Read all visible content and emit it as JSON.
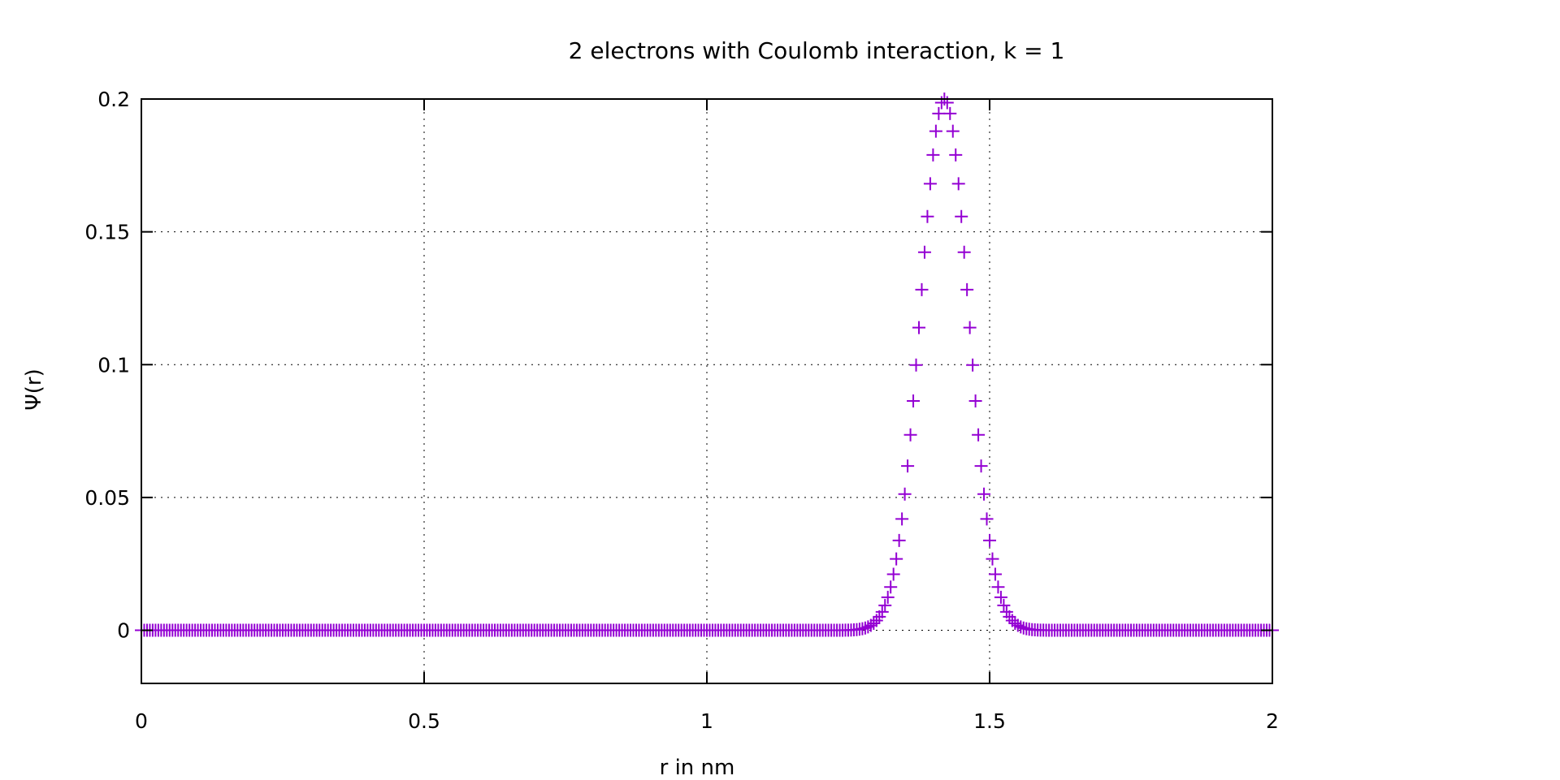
{
  "chart_data": {
    "type": "scatter",
    "title": "2 electrons with Coulomb interaction, k = 1",
    "xlabel": "r in nm",
    "ylabel": "Ψ(r)",
    "xlim": [
      0,
      2
    ],
    "ylim": [
      -0.02,
      0.2
    ],
    "x_ticks": [
      0,
      0.5,
      1,
      1.5,
      2
    ],
    "x_tick_labels": [
      "0",
      "0.5",
      "1",
      "1.5",
      "2"
    ],
    "y_ticks": [
      0,
      0.05,
      0.1,
      0.15,
      0.2
    ],
    "y_tick_labels": [
      "0",
      "0.05",
      "0.1",
      "0.15",
      "0.2"
    ],
    "grid": true,
    "marker": "plus",
    "color": "#9400d3",
    "series": [
      {
        "x_start": 0,
        "x_end": 2,
        "n_points": 401,
        "peak_x": 1.42,
        "peak_y": 0.2,
        "width": 0.06
      }
    ]
  }
}
